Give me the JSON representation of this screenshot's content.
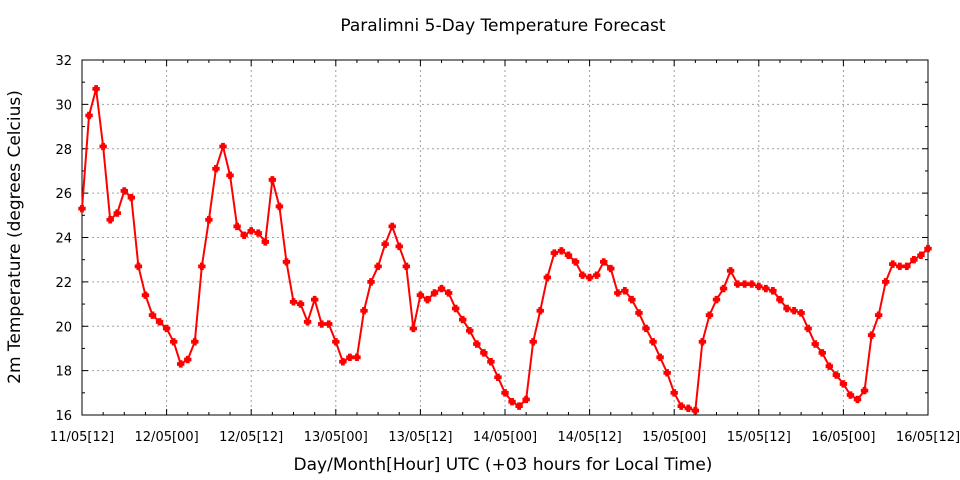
{
  "chart_data": {
    "type": "line",
    "title": "Paralimni 5-Day Temperature Forecast",
    "xlabel": "Day/Month[Hour] UTC (+03 hours for Local Time)",
    "ylabel": "2m Temperature (degrees Celcius)",
    "x_ticks": [
      "11/05[12]",
      "12/05[00]",
      "12/05[12]",
      "13/05[00]",
      "13/05[12]",
      "14/05[00]",
      "14/05[12]",
      "15/05[00]",
      "15/05[12]",
      "16/05[00]",
      "16/05[12]"
    ],
    "y_ticks": [
      "16",
      "18",
      "20",
      "22",
      "24",
      "26",
      "28",
      "30",
      "32"
    ],
    "ylim": [
      16,
      32
    ],
    "x_start": "11/05[12]",
    "x_end": "16/05[12]",
    "x_step_hours": 1,
    "grid": true,
    "series": [
      {
        "color": "#ff0000",
        "values": [
          25.3,
          29.5,
          30.7,
          28.1,
          24.8,
          25.1,
          26.1,
          25.8,
          22.7,
          21.4,
          20.5,
          20.2,
          19.9,
          19.3,
          18.3,
          18.5,
          19.3,
          22.7,
          24.8,
          27.1,
          28.1,
          26.8,
          24.5,
          24.1,
          24.3,
          24.2,
          23.8,
          26.6,
          25.4,
          22.9,
          21.1,
          21.0,
          20.2,
          21.2,
          20.1,
          20.1,
          19.3,
          18.4,
          18.6,
          18.6,
          20.7,
          22.0,
          22.7,
          23.7,
          24.5,
          23.6,
          22.7,
          19.9,
          21.4,
          21.2,
          21.5,
          21.7,
          21.5,
          20.8,
          20.3,
          19.8,
          19.2,
          18.8,
          18.4,
          17.7,
          17.0,
          16.6,
          16.4,
          16.7,
          19.3,
          20.7,
          22.2,
          23.3,
          23.4,
          23.2,
          22.9,
          22.3,
          22.2,
          22.3,
          22.9,
          22.6,
          21.5,
          21.6,
          21.2,
          20.6,
          19.9,
          19.3,
          18.6,
          17.9,
          17.0,
          16.4,
          16.3,
          16.2,
          19.3,
          20.5,
          21.2,
          21.7,
          22.5,
          21.9,
          21.9,
          21.9,
          21.8,
          21.7,
          21.6,
          21.2,
          20.8,
          20.7,
          20.6,
          19.9,
          19.2,
          18.8,
          18.2,
          17.8,
          17.4,
          16.9,
          16.7,
          17.1,
          19.6,
          20.5,
          22.0,
          22.8,
          22.7,
          22.7,
          23.0,
          23.2,
          23.5
        ]
      }
    ]
  }
}
